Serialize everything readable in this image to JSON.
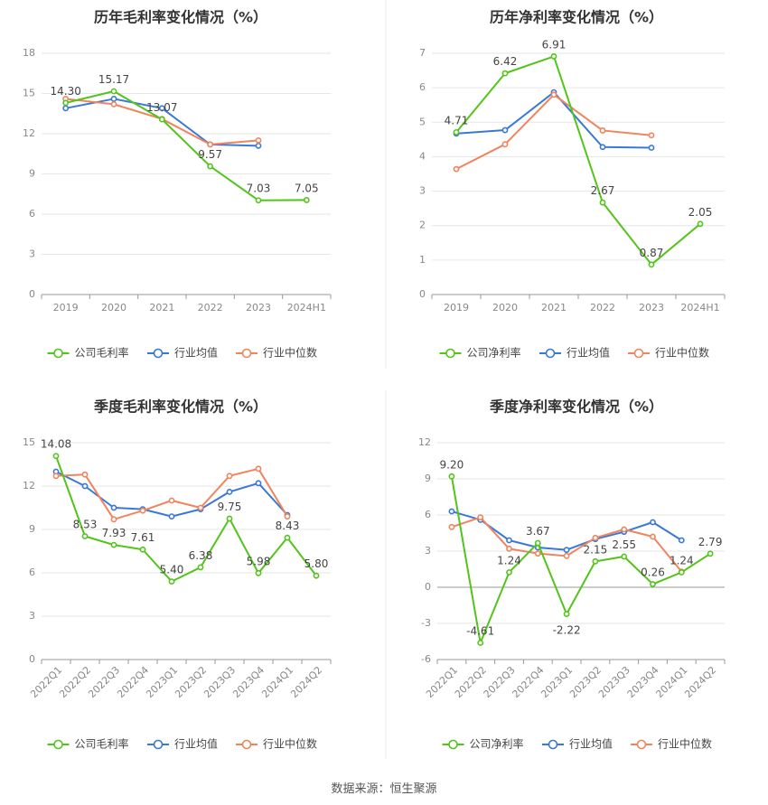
{
  "colors": {
    "company": "#52c41a",
    "average": "#3a78d8",
    "median": "#f0845c"
  },
  "footer": {
    "label": "数据来源：",
    "source": "恒生聚源"
  },
  "chart_data": [
    {
      "type": "line",
      "title": "历年毛利率变化情况（%）",
      "categories": [
        "2019",
        "2020",
        "2021",
        "2022",
        "2023",
        "2024H1"
      ],
      "ylim": [
        0,
        18
      ],
      "yticks": [
        0,
        3,
        6,
        9,
        12,
        15,
        18
      ],
      "grid": true,
      "legend_position": "bottom",
      "series": [
        {
          "name": "公司毛利率",
          "role": "company",
          "values": [
            14.3,
            15.17,
            13.07,
            9.57,
            7.03,
            7.05
          ],
          "labels": [
            "14.30",
            "15.17",
            "13.07",
            "9.57",
            "7.03",
            "7.05"
          ]
        },
        {
          "name": "行业均值",
          "role": "average",
          "values": [
            13.9,
            14.6,
            13.9,
            11.2,
            11.1,
            null
          ]
        },
        {
          "name": "行业中位数",
          "role": "median",
          "values": [
            14.6,
            14.2,
            13.1,
            11.2,
            11.5,
            null
          ]
        }
      ]
    },
    {
      "type": "line",
      "title": "历年净利率变化情况（%）",
      "categories": [
        "2019",
        "2020",
        "2021",
        "2022",
        "2023",
        "2024H1"
      ],
      "ylim": [
        0,
        7
      ],
      "yticks": [
        0,
        1,
        2,
        3,
        4,
        5,
        6,
        7
      ],
      "grid": true,
      "legend_position": "bottom",
      "series": [
        {
          "name": "公司净利率",
          "role": "company",
          "values": [
            4.71,
            6.42,
            6.91,
            2.67,
            0.87,
            2.05
          ],
          "labels": [
            "4.71",
            "6.42",
            "6.91",
            "2.67",
            "0.87",
            "2.05"
          ]
        },
        {
          "name": "行业均值",
          "role": "average",
          "values": [
            4.67,
            4.77,
            5.87,
            4.28,
            4.26,
            null
          ]
        },
        {
          "name": "行业中位数",
          "role": "median",
          "values": [
            3.64,
            4.36,
            5.8,
            4.76,
            4.62,
            null
          ]
        }
      ]
    },
    {
      "type": "line",
      "title": "季度毛利率变化情况（%）",
      "categories": [
        "2022Q1",
        "2022Q2",
        "2022Q3",
        "2022Q4",
        "2023Q1",
        "2023Q2",
        "2023Q3",
        "2023Q4",
        "2024Q1",
        "2024Q2"
      ],
      "ylim": [
        0,
        15
      ],
      "yticks": [
        0,
        3,
        6,
        9,
        12,
        15
      ],
      "grid": true,
      "legend_position": "bottom",
      "series": [
        {
          "name": "公司毛利率",
          "role": "company",
          "values": [
            14.08,
            8.53,
            7.93,
            7.61,
            5.4,
            6.38,
            9.75,
            5.98,
            8.43,
            5.8
          ],
          "labels": [
            "14.08",
            "8.53",
            "7.93",
            "7.61",
            "5.40",
            "6.38",
            "9.75",
            "5.98",
            "8.43",
            "5.80"
          ]
        },
        {
          "name": "行业均值",
          "role": "average",
          "values": [
            13.0,
            12.0,
            10.5,
            10.4,
            9.9,
            10.4,
            11.6,
            12.2,
            10.0,
            null
          ]
        },
        {
          "name": "行业中位数",
          "role": "median",
          "values": [
            12.7,
            12.8,
            9.7,
            10.3,
            11.0,
            10.5,
            12.7,
            13.2,
            9.9,
            null
          ]
        }
      ]
    },
    {
      "type": "line",
      "title": "季度净利率变化情况（%）",
      "categories": [
        "2022Q1",
        "2022Q2",
        "2022Q3",
        "2022Q4",
        "2023Q1",
        "2023Q2",
        "2023Q3",
        "2023Q4",
        "2024Q1",
        "2024Q2"
      ],
      "ylim": [
        -6,
        12
      ],
      "yticks": [
        -6,
        -3,
        0,
        3,
        6,
        9,
        12
      ],
      "grid": true,
      "legend_position": "bottom",
      "series": [
        {
          "name": "公司净利率",
          "role": "company",
          "values": [
            9.2,
            -4.61,
            1.24,
            3.67,
            -2.22,
            2.15,
            2.55,
            0.26,
            1.24,
            2.79
          ],
          "labels": [
            "9.20",
            "-4.61",
            "1.24",
            "3.67",
            "-2.22",
            "2.15",
            "2.55",
            "0.26",
            "1.24",
            "2.79"
          ]
        },
        {
          "name": "行业均值",
          "role": "average",
          "values": [
            6.3,
            5.6,
            3.9,
            3.3,
            3.1,
            4.0,
            4.6,
            5.4,
            3.9,
            null
          ]
        },
        {
          "name": "行业中位数",
          "role": "median",
          "values": [
            5.0,
            5.8,
            3.2,
            2.8,
            2.6,
            4.1,
            4.8,
            4.2,
            1.3,
            null
          ]
        }
      ]
    }
  ]
}
